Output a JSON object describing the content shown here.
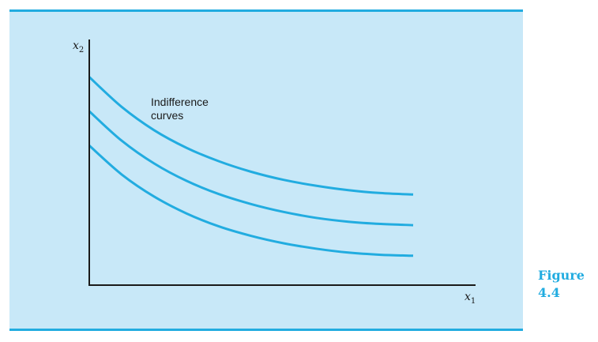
{
  "caption": {
    "line1": "Figure",
    "line2": "4.4"
  },
  "colors": {
    "panel_background": "#c8e8f8",
    "curve": "#22ace0",
    "rule": "#22ace0",
    "caption": "#22ace0",
    "axis": "#1a1a1a"
  },
  "chart_data": {
    "type": "line",
    "title": "",
    "xlabel": "x",
    "xlabel_subscript": "1",
    "ylabel": "x",
    "ylabel_subscript": "2",
    "annotation": [
      "Indifference",
      "curves"
    ],
    "xlim": [
      0,
      10
    ],
    "ylim": [
      0,
      10
    ],
    "ticks": false,
    "grid": false,
    "legend": "none",
    "series": [
      {
        "x": [
          0,
          1,
          2,
          3,
          4,
          5,
          6,
          7,
          8,
          9,
          10
        ],
        "values": [
          8.5,
          7.28,
          6.33,
          5.61,
          5.06,
          4.63,
          4.3,
          4.06,
          3.88,
          3.76,
          3.7
        ]
      },
      {
        "x": [
          0,
          1,
          2,
          3,
          4,
          5,
          6,
          7,
          8,
          9,
          10
        ],
        "values": [
          7.1,
          5.9,
          4.97,
          4.26,
          3.72,
          3.31,
          2.99,
          2.75,
          2.59,
          2.5,
          2.45
        ]
      },
      {
        "x": [
          0,
          1,
          2,
          3,
          4,
          5,
          6,
          7,
          8,
          9,
          10
        ],
        "values": [
          5.7,
          4.52,
          3.62,
          2.93,
          2.4,
          2.01,
          1.71,
          1.49,
          1.33,
          1.24,
          1.2
        ]
      }
    ]
  }
}
